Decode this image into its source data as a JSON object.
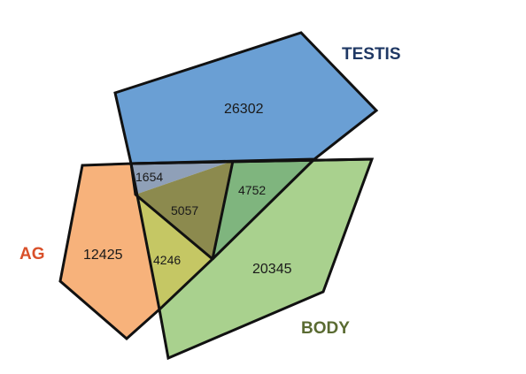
{
  "sets": {
    "testis": {
      "label": "TESTIS",
      "color": "#6a9fd4",
      "label_color": "#1f3864"
    },
    "body": {
      "label": "BODY",
      "color": "#a9d18e",
      "label_color": "#5a6b32"
    },
    "ag": {
      "label": "AG",
      "color": "#f7b27b",
      "label_color": "#d9502a"
    }
  },
  "regions": {
    "testis_only": {
      "count": "26302"
    },
    "body_only": {
      "count": "20345"
    },
    "ag_only": {
      "count": "12425"
    },
    "testis_ag": {
      "count": "1654"
    },
    "all_three": {
      "count": "5057"
    },
    "testis_body": {
      "count": "4752"
    },
    "ag_body": {
      "count": "4246"
    }
  },
  "colors": {
    "testis_ag": "#8fa0b8",
    "all_three": "#8c8a4e",
    "testis_body": "#7fb57e",
    "ag_body": "#c5c764",
    "outline": "#111111"
  }
}
